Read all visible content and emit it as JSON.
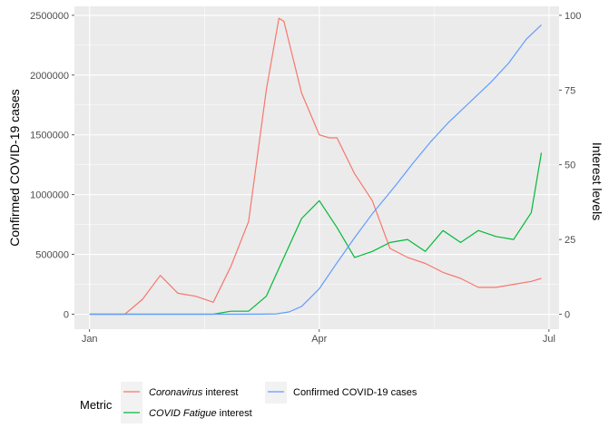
{
  "chart_data": {
    "type": "line",
    "xlabel": "",
    "y_left_label": "Confirmed COVID-19 cases",
    "y_right_label": "Interest levels",
    "x_tick_labels": [
      "Jan",
      "Apr",
      "Jul"
    ],
    "x_ticks": [
      "2020-01-01",
      "2020-04-01",
      "2020-07-01"
    ],
    "xlim": [
      "2019-12-26",
      "2020-07-05"
    ],
    "y_left_ticks": [
      "0",
      "500000",
      "1000000",
      "1500000",
      "2000000",
      "2500000"
    ],
    "y_left_tick_values": [
      0,
      500000,
      1000000,
      1500000,
      2000000,
      2500000
    ],
    "ylim_left": [
      -125000,
      2575000
    ],
    "y_right_ticks": [
      "0",
      "25",
      "50",
      "75",
      "100"
    ],
    "y_right_tick_values": [
      0,
      25,
      50,
      75,
      100
    ],
    "ylim_right": [
      -5,
      103
    ],
    "grid": true,
    "legend_position": "bottom",
    "legend_title": "Metric",
    "series": [
      {
        "name": "Coronavirus interest",
        "name_emph": "Coronavirus",
        "name_rest": " interest",
        "axis": "right",
        "color": "#F8766D",
        "x": [
          "2020-01-01",
          "2020-01-08",
          "2020-01-15",
          "2020-01-22",
          "2020-01-29",
          "2020-02-05",
          "2020-02-12",
          "2020-02-19",
          "2020-02-26",
          "2020-03-04",
          "2020-03-11",
          "2020-03-16",
          "2020-03-18",
          "2020-03-25",
          "2020-04-01",
          "2020-04-05",
          "2020-04-08",
          "2020-04-15",
          "2020-04-22",
          "2020-04-29",
          "2020-05-06",
          "2020-05-13",
          "2020-05-20",
          "2020-05-27",
          "2020-06-03",
          "2020-06-10",
          "2020-06-17",
          "2020-06-24",
          "2020-06-28"
        ],
        "y": [
          0,
          0,
          0,
          5,
          13,
          7,
          6,
          4,
          16,
          31,
          75,
          99,
          98,
          74,
          60,
          59,
          59,
          47,
          38,
          22,
          19,
          17,
          14,
          12,
          9,
          9,
          10,
          11,
          12
        ]
      },
      {
        "name": "COVID Fatigue interest",
        "name_emph": "COVID Fatigue",
        "name_rest": " interest",
        "axis": "right",
        "color": "#00BA38",
        "x": [
          "2020-01-01",
          "2020-01-08",
          "2020-01-15",
          "2020-01-22",
          "2020-01-29",
          "2020-02-05",
          "2020-02-12",
          "2020-02-19",
          "2020-02-26",
          "2020-03-04",
          "2020-03-11",
          "2020-03-18",
          "2020-03-25",
          "2020-04-01",
          "2020-04-08",
          "2020-04-15",
          "2020-04-22",
          "2020-04-29",
          "2020-05-06",
          "2020-05-13",
          "2020-05-20",
          "2020-05-27",
          "2020-06-03",
          "2020-06-10",
          "2020-06-17",
          "2020-06-24",
          "2020-06-28"
        ],
        "y": [
          0,
          0,
          0,
          0,
          0,
          0,
          0,
          0,
          1,
          1,
          6,
          19,
          32,
          38,
          29,
          19,
          21,
          24,
          25,
          21,
          28,
          24,
          28,
          26,
          25,
          34,
          54
        ]
      },
      {
        "name": "Confirmed COVID-19 cases",
        "axis": "left",
        "color": "#619CFF",
        "x": [
          "2020-01-01",
          "2020-01-22",
          "2020-02-15",
          "2020-03-01",
          "2020-03-10",
          "2020-03-15",
          "2020-03-20",
          "2020-03-25",
          "2020-04-01",
          "2020-04-08",
          "2020-04-15",
          "2020-04-22",
          "2020-05-01",
          "2020-05-08",
          "2020-05-15",
          "2020-05-22",
          "2020-06-01",
          "2020-06-08",
          "2020-06-15",
          "2020-06-22",
          "2020-06-28"
        ],
        "y": [
          0,
          0,
          0,
          500,
          1000,
          3500,
          19000,
          65000,
          213000,
          430000,
          640000,
          840000,
          1070000,
          1260000,
          1440000,
          1600000,
          1800000,
          1940000,
          2100000,
          2300000,
          2420000
        ]
      }
    ]
  }
}
